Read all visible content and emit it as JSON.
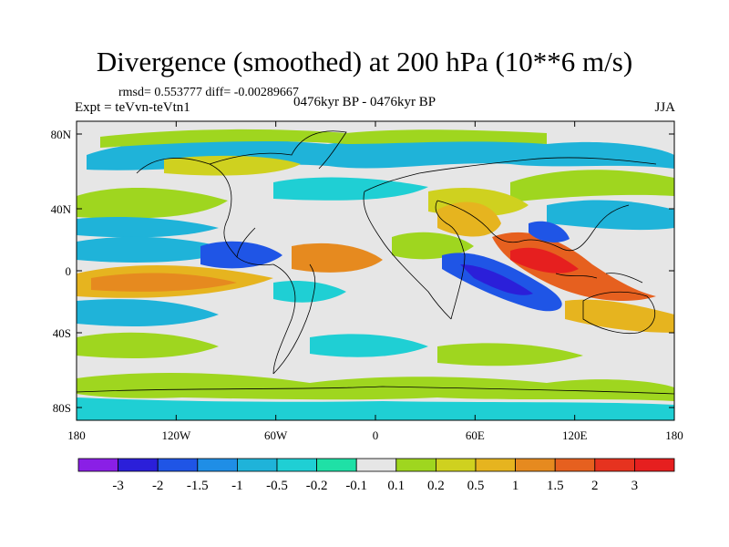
{
  "header": {
    "title": "Divergence (smoothed) at 200 hPa (10**6 m/s)",
    "stats": "rmsd= 0.553777 diff= -0.00289667",
    "experiment": "Expt = teVvn-teVtn1",
    "period": "0476kyr BP - 0476kyr BP",
    "season": "JJA"
  },
  "axes": {
    "y_ticks": [
      "80N",
      "40N",
      "0",
      "40S",
      "80S"
    ],
    "x_ticks": [
      "180",
      "120W",
      "60W",
      "0",
      "60E",
      "120E",
      "180"
    ]
  },
  "colorbar": {
    "levels": [
      "-3",
      "-2",
      "-1.5",
      "-1",
      "-0.5",
      "-0.2",
      "-0.1",
      "0.1",
      "0.2",
      "0.5",
      "1",
      "1.5",
      "2",
      "3"
    ],
    "colors": [
      "#8a1fe6",
      "#2b1fd9",
      "#1f55e6",
      "#1f8ee6",
      "#1fb3d9",
      "#1fcfd4",
      "#1fe0a6",
      "#e6e6e6",
      "#9fd61f",
      "#cfd11f",
      "#e6b41f",
      "#e68a1f",
      "#e6601f",
      "#e6331f",
      "#e61f1f"
    ]
  },
  "map_colors": {
    "background": "#e6e6e6",
    "coast": "#000000"
  }
}
